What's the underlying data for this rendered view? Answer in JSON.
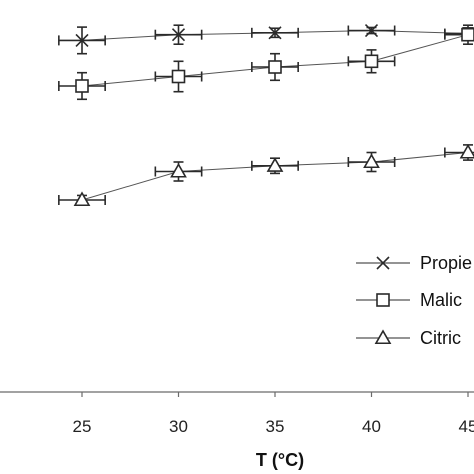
{
  "chart_data": {
    "type": "line",
    "title": "",
    "xlabel": "T (°C)",
    "ylabel": "",
    "x": [
      25,
      30,
      35,
      40,
      45
    ],
    "xlim": [
      20.5,
      46
    ],
    "ylim": [
      0,
      1
    ],
    "x_error": 1.2,
    "grid": false,
    "legend_position": "right",
    "series": [
      {
        "name": "Propie",
        "marker": "x",
        "values": [
          0.97,
          0.985,
          0.99,
          0.996,
          0.988
        ],
        "y_error": [
          0.035,
          0.025,
          0.012,
          0.008,
          0.015
        ]
      },
      {
        "name": "Malic",
        "marker": "square",
        "values": [
          0.85,
          0.875,
          0.9,
          0.915,
          0.985
        ],
        "y_error": [
          0.035,
          0.04,
          0.035,
          0.03,
          0.025
        ]
      },
      {
        "name": "Citric",
        "marker": "triangle",
        "values": [
          0.55,
          0.625,
          0.64,
          0.65,
          0.675
        ],
        "y_error": [
          0.012,
          0.025,
          0.02,
          0.025,
          0.02
        ]
      }
    ]
  }
}
